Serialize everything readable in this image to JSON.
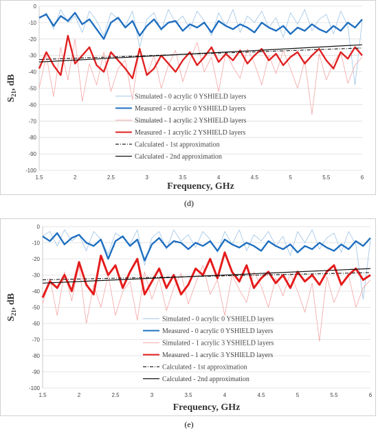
{
  "chart_data": [
    {
      "type": "line",
      "caption": "(d)",
      "xlabel": "Frequency, GHz",
      "ylabel_main": "S",
      "ylabel_sub": "21",
      "ylabel_tail": ", dB",
      "xlim": [
        1.5,
        6
      ],
      "ylim": [
        -100,
        0
      ],
      "xticks": [
        "1.5",
        "2",
        "2.5",
        "3",
        "3.5",
        "4",
        "4.5",
        "5",
        "5.5",
        "6"
      ],
      "yticks": [
        "0",
        "-10",
        "-20",
        "-30",
        "-40",
        "-50",
        "-60",
        "-70",
        "-80",
        "-90",
        "-100"
      ],
      "grid": true,
      "series": [
        {
          "name": "Simulated - 0 acrylic 0 YSHIELD layers",
          "color": "#9dc3e6",
          "x": [
            1.5,
            1.6,
            1.7,
            1.8,
            1.9,
            2.0,
            2.1,
            2.2,
            2.3,
            2.4,
            2.5,
            2.6,
            2.7,
            2.8,
            2.9,
            3.0,
            3.1,
            3.2,
            3.3,
            3.4,
            3.5,
            3.6,
            3.7,
            3.8,
            3.9,
            4.0,
            4.1,
            4.2,
            4.3,
            4.4,
            4.5,
            4.6,
            4.7,
            4.8,
            4.9,
            5.0,
            5.1,
            5.2,
            5.3,
            5.4,
            5.5,
            5.6,
            5.7,
            5.8,
            5.9,
            6.0
          ],
          "y": [
            -8,
            -4,
            -14,
            -2,
            -10,
            -6,
            -16,
            -3,
            -9,
            -18,
            -4,
            -8,
            -12,
            -3,
            -25,
            -8,
            -4,
            -15,
            -2,
            -10,
            -6,
            -14,
            -3,
            -9,
            -18,
            -4,
            -12,
            -2,
            -16,
            -6,
            -10,
            -3,
            -13,
            -7,
            -19,
            -4,
            -11,
            -2,
            -15,
            -8,
            -5,
            -17,
            -3,
            -12,
            -48,
            -9
          ]
        },
        {
          "name": "Measured - 0 acrylic 0 YSHIELD layers",
          "color": "#1f6fc0",
          "x": [
            1.5,
            1.6,
            1.7,
            1.8,
            1.9,
            2.0,
            2.1,
            2.2,
            2.3,
            2.4,
            2.5,
            2.6,
            2.7,
            2.8,
            2.9,
            3.0,
            3.1,
            3.2,
            3.3,
            3.4,
            3.5,
            3.6,
            3.7,
            3.8,
            3.9,
            4.0,
            4.1,
            4.2,
            4.3,
            4.4,
            4.5,
            4.6,
            4.7,
            4.8,
            4.9,
            5.0,
            5.1,
            5.2,
            5.3,
            5.4,
            5.5,
            5.6,
            5.7,
            5.8,
            5.9,
            6.0
          ],
          "y": [
            -7,
            -5,
            -12,
            -6,
            -9,
            -4,
            -11,
            -8,
            -14,
            -20,
            -10,
            -7,
            -13,
            -9,
            -18,
            -12,
            -8,
            -14,
            -10,
            -9,
            -15,
            -11,
            -13,
            -10,
            -16,
            -9,
            -12,
            -14,
            -11,
            -13,
            -16,
            -10,
            -13,
            -15,
            -12,
            -17,
            -13,
            -15,
            -11,
            -14,
            -16,
            -12,
            -15,
            -10,
            -13,
            -8
          ]
        },
        {
          "name": "Simulated - 1 acrylic 2 YSHIELD layers",
          "color": "#f4a3a3",
          "x": [
            1.5,
            1.6,
            1.7,
            1.8,
            1.9,
            2.0,
            2.1,
            2.2,
            2.3,
            2.4,
            2.5,
            2.6,
            2.7,
            2.8,
            2.9,
            3.0,
            3.1,
            3.2,
            3.3,
            3.4,
            3.5,
            3.6,
            3.7,
            3.8,
            3.9,
            4.0,
            4.1,
            4.2,
            4.3,
            4.4,
            4.5,
            4.6,
            4.7,
            4.8,
            4.9,
            5.0,
            5.1,
            5.2,
            5.3,
            5.4,
            5.5,
            5.6,
            5.7,
            5.8,
            5.9,
            6.0
          ],
          "y": [
            -50,
            -30,
            -55,
            -25,
            -45,
            -20,
            -58,
            -35,
            -48,
            -28,
            -52,
            -38,
            -33,
            -57,
            -25,
            -42,
            -30,
            -50,
            -36,
            -27,
            -46,
            -33,
            -22,
            -40,
            -31,
            -52,
            -28,
            -37,
            -44,
            -26,
            -35,
            -48,
            -30,
            -41,
            -27,
            -38,
            -50,
            -33,
            -66,
            -29,
            -45,
            -34,
            -28,
            -47,
            -36,
            -31
          ]
        },
        {
          "name": "Measured - 1 acrylic 2 YSHIELD layers",
          "color": "#e02020",
          "x": [
            1.5,
            1.6,
            1.7,
            1.8,
            1.9,
            2.0,
            2.1,
            2.2,
            2.3,
            2.4,
            2.5,
            2.6,
            2.7,
            2.8,
            2.9,
            3.0,
            3.1,
            3.2,
            3.3,
            3.4,
            3.5,
            3.6,
            3.7,
            3.8,
            3.9,
            4.0,
            4.1,
            4.2,
            4.3,
            4.4,
            4.5,
            4.6,
            4.7,
            4.8,
            4.9,
            5.0,
            5.1,
            5.2,
            5.3,
            5.4,
            5.5,
            5.6,
            5.7,
            5.8,
            5.9,
            6.0
          ],
          "y": [
            -38,
            -28,
            -36,
            -42,
            -18,
            -35,
            -30,
            -25,
            -36,
            -40,
            -28,
            -33,
            -38,
            -44,
            -26,
            -42,
            -38,
            -30,
            -35,
            -40,
            -33,
            -28,
            -36,
            -31,
            -25,
            -34,
            -29,
            -33,
            -27,
            -35,
            -30,
            -26,
            -33,
            -29,
            -36,
            -31,
            -28,
            -35,
            -30,
            -26,
            -33,
            -38,
            -28,
            -32,
            -25,
            -30
          ]
        },
        {
          "name": "Calculated - 1st approximation",
          "color": "#222222",
          "dash": "5,2,1,2",
          "x": [
            1.5,
            6.0
          ],
          "y": [
            -32.5,
            -25.5
          ]
        },
        {
          "name": "Calculated - 2nd approximation",
          "color": "#111111",
          "x": [
            1.5,
            6.0
          ],
          "y": [
            -34,
            -23.5
          ]
        }
      ]
    },
    {
      "type": "line",
      "caption": "(e)",
      "xlabel": "Frequency, GHz",
      "ylabel_main": "S",
      "ylabel_sub": "21",
      "ylabel_tail": ", dB",
      "xlim": [
        1.5,
        6
      ],
      "ylim": [
        -100,
        0
      ],
      "xticks": [
        "1.5",
        "2",
        "2.5",
        "3",
        "3.5",
        "4",
        "4.5",
        "5",
        "5.5",
        "6"
      ],
      "yticks": [
        "0",
        "-10",
        "-20",
        "-30",
        "-40",
        "-50",
        "-60",
        "-70",
        "-80",
        "-90",
        "-100"
      ],
      "grid": true,
      "series": [
        {
          "name": "Simulated - 0 acrylic 0 YSHIELD layers",
          "color": "#9dc3e6",
          "x": [
            1.5,
            1.6,
            1.7,
            1.8,
            1.9,
            2.0,
            2.1,
            2.2,
            2.3,
            2.4,
            2.5,
            2.6,
            2.7,
            2.8,
            2.9,
            3.0,
            3.1,
            3.2,
            3.3,
            3.4,
            3.5,
            3.6,
            3.7,
            3.8,
            3.9,
            4.0,
            4.1,
            4.2,
            4.3,
            4.4,
            4.5,
            4.6,
            4.7,
            4.8,
            4.9,
            5.0,
            5.1,
            5.2,
            5.3,
            5.4,
            5.5,
            5.6,
            5.7,
            5.8,
            5.9,
            6.0
          ],
          "y": [
            -6,
            -3,
            -12,
            -2,
            -9,
            -5,
            -15,
            -3,
            -8,
            -17,
            -4,
            -7,
            -11,
            -2,
            -24,
            -7,
            -3,
            -14,
            -2,
            -9,
            -5,
            -13,
            -3,
            -8,
            -16,
            -3,
            -11,
            -2,
            -15,
            -5,
            -9,
            -3,
            -12,
            -6,
            -18,
            -3,
            -10,
            -2,
            -14,
            -7,
            -4,
            -16,
            -3,
            -11,
            -45,
            -8
          ]
        },
        {
          "name": "Measured - 0 acrylic 0 YSHIELD layers",
          "color": "#1f6fc0",
          "x": [
            1.5,
            1.6,
            1.7,
            1.8,
            1.9,
            2.0,
            2.1,
            2.2,
            2.3,
            2.4,
            2.5,
            2.6,
            2.7,
            2.8,
            2.9,
            3.0,
            3.1,
            3.2,
            3.3,
            3.4,
            3.5,
            3.6,
            3.7,
            3.8,
            3.9,
            4.0,
            4.1,
            4.2,
            4.3,
            4.4,
            4.5,
            4.6,
            4.7,
            4.8,
            4.9,
            5.0,
            5.1,
            5.2,
            5.3,
            5.4,
            5.5,
            5.6,
            5.7,
            5.8,
            5.9,
            6.0
          ],
          "y": [
            -6,
            -9,
            -4,
            -11,
            -7,
            -5,
            -10,
            -12,
            -8,
            -20,
            -9,
            -6,
            -12,
            -8,
            -21,
            -11,
            -7,
            -13,
            -9,
            -10,
            -14,
            -10,
            -12,
            -9,
            -15,
            -8,
            -11,
            -13,
            -10,
            -12,
            -15,
            -9,
            -12,
            -14,
            -11,
            -16,
            -12,
            -14,
            -10,
            -13,
            -15,
            -11,
            -14,
            -9,
            -12,
            -7
          ]
        },
        {
          "name": "Simulated - 1 acrylic 3 YSHIELD layers",
          "color": "#f4a3a3",
          "x": [
            1.5,
            1.6,
            1.7,
            1.8,
            1.9,
            2.0,
            2.1,
            2.2,
            2.3,
            2.4,
            2.5,
            2.6,
            2.7,
            2.8,
            2.9,
            3.0,
            3.1,
            3.2,
            3.3,
            3.4,
            3.5,
            3.6,
            3.7,
            3.8,
            3.9,
            4.0,
            4.1,
            4.2,
            4.3,
            4.4,
            4.5,
            4.6,
            4.7,
            4.8,
            4.9,
            5.0,
            5.1,
            5.2,
            5.3,
            5.4,
            5.5,
            5.6,
            5.7,
            5.8,
            5.9,
            6.0
          ],
          "y": [
            -48,
            -32,
            -55,
            -28,
            -46,
            -24,
            -60,
            -36,
            -50,
            -30,
            -55,
            -40,
            -34,
            -58,
            -28,
            -45,
            -32,
            -52,
            -38,
            -29,
            -48,
            -35,
            -24,
            -42,
            -33,
            -55,
            -30,
            -39,
            -47,
            -28,
            -37,
            -50,
            -32,
            -43,
            -29,
            -40,
            -53,
            -35,
            -71,
            -31,
            -47,
            -36,
            -30,
            -50,
            -38,
            -33
          ]
        },
        {
          "name": "Measured - 1 acrylic 3 YSHIELD layers",
          "color": "#e51b1b",
          "x": [
            1.5,
            1.6,
            1.7,
            1.8,
            1.9,
            2.0,
            2.1,
            2.2,
            2.3,
            2.4,
            2.5,
            2.6,
            2.7,
            2.8,
            2.9,
            3.0,
            3.1,
            3.2,
            3.3,
            3.4,
            3.5,
            3.6,
            3.7,
            3.8,
            3.9,
            4.0,
            4.1,
            4.2,
            4.3,
            4.4,
            4.5,
            4.6,
            4.7,
            4.8,
            4.9,
            5.0,
            5.1,
            5.2,
            5.3,
            5.4,
            5.5,
            5.6,
            5.7,
            5.8,
            5.9,
            6.0
          ],
          "y": [
            -44,
            -34,
            -38,
            -30,
            -40,
            -22,
            -36,
            -42,
            -18,
            -30,
            -24,
            -38,
            -28,
            -20,
            -42,
            -34,
            -26,
            -38,
            -30,
            -42,
            -36,
            -26,
            -30,
            -20,
            -32,
            -16,
            -28,
            -34,
            -24,
            -38,
            -32,
            -28,
            -35,
            -30,
            -38,
            -28,
            -34,
            -30,
            -36,
            -28,
            -24,
            -36,
            -30,
            -26,
            -33,
            -30
          ]
        },
        {
          "name": "Calculated - 1st approximation",
          "color": "#222222",
          "dash": "5,2,1,2",
          "x": [
            1.5,
            6.0
          ],
          "y": [
            -33,
            -28.5
          ]
        },
        {
          "name": "Calculated - 2nd approximation",
          "color": "#111111",
          "x": [
            1.5,
            6.0
          ],
          "y": [
            -35,
            -26
          ]
        }
      ]
    }
  ]
}
